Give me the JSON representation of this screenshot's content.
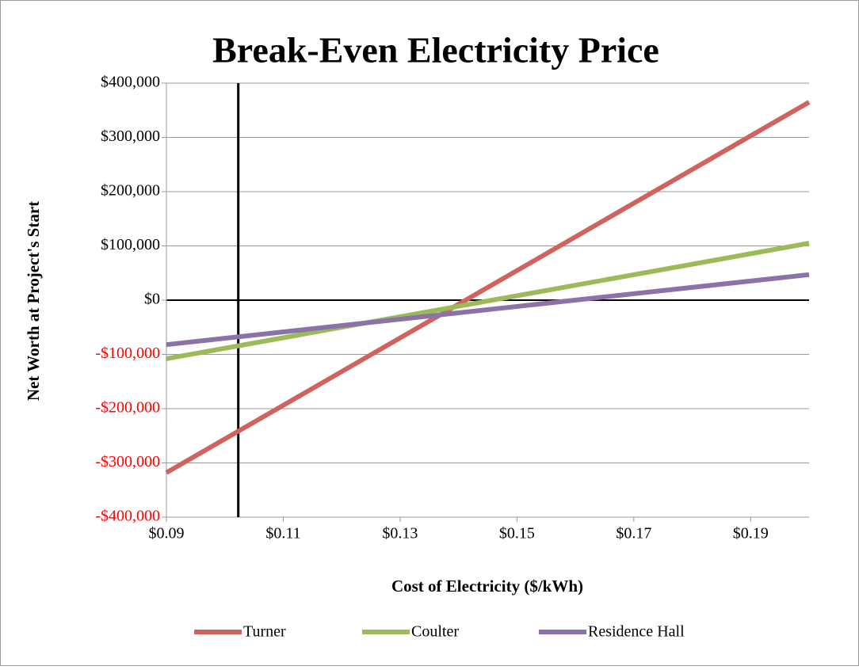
{
  "chart_data": {
    "type": "line",
    "title": "Break-Even Electricity Price",
    "x_label": "Cost of Electricity ($/kWh)",
    "y_label": "Net Worth at Project's Start",
    "x": [
      0.09,
      0.2
    ],
    "series": [
      {
        "name": "Turner",
        "color": "#d0635e",
        "values": [
          -318000,
          365000
        ]
      },
      {
        "name": "Coulter",
        "color": "#9bbb59",
        "values": [
          -108000,
          105000
        ]
      },
      {
        "name": "Residence Hall",
        "color": "#8c72a8",
        "values": [
          -82000,
          47000
        ]
      }
    ],
    "xlim": [
      0.09,
      0.2
    ],
    "xticks": [
      {
        "value": 0.09,
        "label": "$0.09"
      },
      {
        "value": 0.11,
        "label": "$0.11"
      },
      {
        "value": 0.13,
        "label": "$0.13"
      },
      {
        "value": 0.15,
        "label": "$0.15"
      },
      {
        "value": 0.17,
        "label": "$0.17"
      },
      {
        "value": 0.19,
        "label": "$0.19"
      }
    ],
    "ylim": [
      -400000,
      400000
    ],
    "yticks": [
      {
        "value": -400000,
        "label": "-$400,000"
      },
      {
        "value": -300000,
        "label": "-$300,000"
      },
      {
        "value": -200000,
        "label": "-$200,000"
      },
      {
        "value": -100000,
        "label": "-$100,000"
      },
      {
        "value": 0,
        "label": "$0"
      },
      {
        "value": 100000,
        "label": "$100,000"
      },
      {
        "value": 200000,
        "label": "$200,000"
      },
      {
        "value": 300000,
        "label": "$300,000"
      },
      {
        "value": 400000,
        "label": "$400,000"
      }
    ],
    "negative_tick_color": "#ff0000",
    "vline": 0.1023,
    "grid": true,
    "legend": "bottom"
  }
}
